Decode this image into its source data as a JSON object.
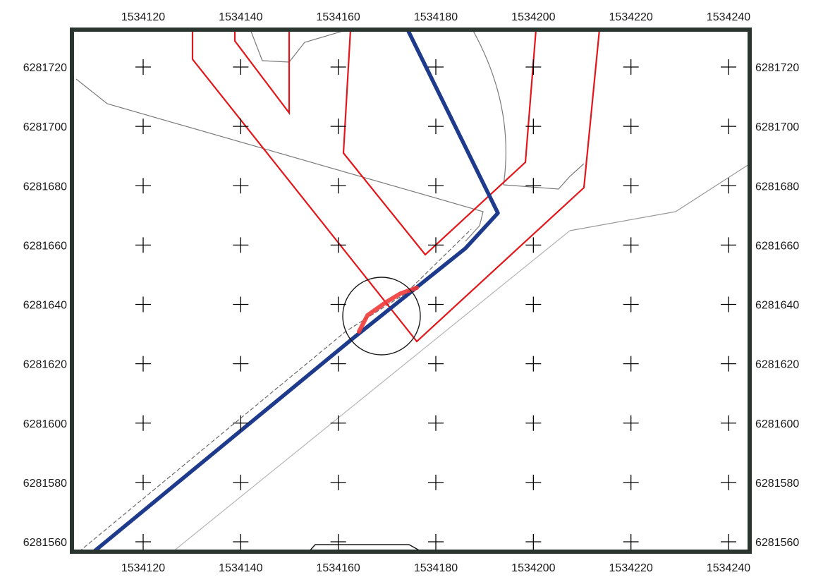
{
  "map": {
    "x_ticks": [
      "1534120",
      "1534140",
      "1534160",
      "1534180",
      "1534200",
      "1534220",
      "1534240"
    ],
    "y_ticks": [
      "6281720",
      "6281700",
      "6281680",
      "6281660",
      "6281640",
      "6281620",
      "6281600",
      "6281580",
      "6281560"
    ],
    "x_tick_values": [
      1534120,
      1534140,
      1534160,
      1534180,
      1534200,
      1534220,
      1534240
    ],
    "y_tick_values": [
      6281720,
      6281700,
      6281680,
      6281660,
      6281640,
      6281620,
      6281600,
      6281580,
      6281560
    ],
    "x_range": [
      1534106,
      1534249
    ],
    "y_range": [
      6281556,
      6281732
    ],
    "grid_marks": "crosses",
    "colors": {
      "frame": "#2b3530",
      "parcel_outline": "#e3161a",
      "route": "#1e3a8c",
      "highlight": "#f03a3a",
      "linework": "#808080",
      "grid_cross": "#000000"
    },
    "features": {
      "route": [
        [
          1534111,
          6281555
        ],
        [
          1534166,
          6281630
        ],
        [
          1534183,
          6281659
        ],
        [
          1534192,
          6281671
        ],
        [
          1534175,
          6281733
        ]
      ],
      "highlight": [
        [
          1534165,
          6281631
        ],
        [
          1534167,
          6281636
        ],
        [
          1534171,
          6281641
        ],
        [
          1534174,
          6281644
        ],
        [
          1534177,
          6281645
        ]
      ],
      "check_circle": {
        "center": [
          1534169,
          6281634
        ],
        "radius": 8
      }
    }
  }
}
